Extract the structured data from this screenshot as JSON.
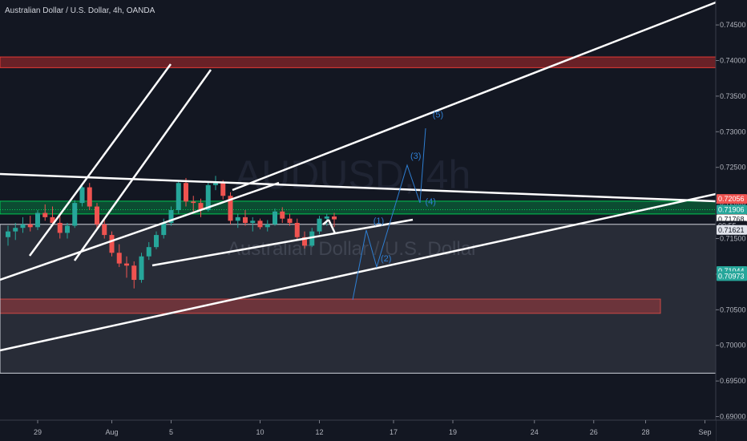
{
  "header": {
    "title": "Australian Dollar / U.S. Dollar, 4h, OANDA"
  },
  "watermark": {
    "symbol": "AUDUSD, 4h",
    "name": "Australian Dollar / U.S. Dollar"
  },
  "colors": {
    "background": "#131722",
    "up": "#26a69a",
    "down": "#ef5350",
    "green_zone": "#00b050",
    "red_zone": "#d32f2f",
    "wave": "#2f7fd3",
    "lines": "#ffffff"
  },
  "chart_data": {
    "type": "candlestick",
    "instrument": "AUDUSD",
    "timeframe": "4h",
    "source": "OANDA",
    "ylim": [
      0.6895,
      0.7485
    ],
    "y_ticks": [
      "0.74500",
      "0.74000",
      "0.73500",
      "0.73000",
      "0.72500",
      "0.72000",
      "0.71500",
      "0.71000",
      "0.70500",
      "0.70000",
      "0.69500",
      "0.69000"
    ],
    "y_tick_values": [
      0.745,
      0.74,
      0.735,
      0.73,
      0.725,
      0.72,
      0.715,
      0.71,
      0.705,
      0.7,
      0.695,
      0.69
    ],
    "x_ticks": [
      {
        "label": "29",
        "index": 4
      },
      {
        "label": "Aug",
        "index": 14
      },
      {
        "label": "5",
        "index": 22
      },
      {
        "label": "10",
        "index": 34
      },
      {
        "label": "12",
        "index": 42
      },
      {
        "label": "17",
        "index": 52
      },
      {
        "label": "19",
        "index": 60
      },
      {
        "label": "24",
        "index": 71
      },
      {
        "label": "26",
        "index": 79
      },
      {
        "label": "28",
        "index": 86
      },
      {
        "label": "Sep",
        "index": 94
      }
    ],
    "price_badges": [
      {
        "label": "0.72056",
        "value": 0.72056,
        "color": "#ef5350"
      },
      {
        "label": "0.71906",
        "value": 0.71906,
        "color": "#26a69a"
      },
      {
        "label": "0.71772",
        "value": 0.71772,
        "color": "#ef5350"
      },
      {
        "label": "0.71768",
        "value": 0.71768,
        "color": "#ffffff"
      },
      {
        "label": "09:55",
        "value": 0.7168,
        "color": "#131722"
      },
      {
        "label": "0.71621",
        "value": 0.71621,
        "color": "#e0e3eb"
      },
      {
        "label": "0.71044",
        "value": 0.71044,
        "color": "#26a69a"
      },
      {
        "label": "0.70973",
        "value": 0.70973,
        "color": "#26a69a"
      }
    ],
    "candles": [
      [
        0.7152,
        0.7168,
        0.714,
        0.716
      ],
      [
        0.716,
        0.7172,
        0.7148,
        0.7165
      ],
      [
        0.7165,
        0.718,
        0.7158,
        0.717
      ],
      [
        0.717,
        0.7182,
        0.716,
        0.7166
      ],
      [
        0.7166,
        0.719,
        0.7162,
        0.7186
      ],
      [
        0.7186,
        0.7198,
        0.7175,
        0.718
      ],
      [
        0.718,
        0.7195,
        0.7168,
        0.7172
      ],
      [
        0.7172,
        0.7182,
        0.715,
        0.7158
      ],
      [
        0.7158,
        0.7172,
        0.715,
        0.7168
      ],
      [
        0.7168,
        0.7204,
        0.7165,
        0.72
      ],
      [
        0.72,
        0.7228,
        0.7195,
        0.7222
      ],
      [
        0.7222,
        0.7228,
        0.719,
        0.7195
      ],
      [
        0.7195,
        0.72,
        0.7165,
        0.717
      ],
      [
        0.717,
        0.7176,
        0.715,
        0.7155
      ],
      [
        0.7155,
        0.716,
        0.7125,
        0.713
      ],
      [
        0.713,
        0.7142,
        0.711,
        0.7115
      ],
      [
        0.7115,
        0.7125,
        0.7095,
        0.7112
      ],
      [
        0.7112,
        0.7118,
        0.708,
        0.7092
      ],
      [
        0.7092,
        0.713,
        0.7088,
        0.7125
      ],
      [
        0.7125,
        0.7145,
        0.712,
        0.7138
      ],
      [
        0.7138,
        0.716,
        0.7135,
        0.7155
      ],
      [
        0.7155,
        0.7178,
        0.715,
        0.7172
      ],
      [
        0.7172,
        0.7195,
        0.7168,
        0.719
      ],
      [
        0.719,
        0.7232,
        0.7185,
        0.7228
      ],
      [
        0.7228,
        0.7235,
        0.7195,
        0.7202
      ],
      [
        0.7202,
        0.721,
        0.7188,
        0.72
      ],
      [
        0.72,
        0.7206,
        0.718,
        0.719
      ],
      [
        0.719,
        0.723,
        0.7188,
        0.7225
      ],
      [
        0.7225,
        0.7238,
        0.7218,
        0.7228
      ],
      [
        0.7228,
        0.7232,
        0.7205,
        0.721
      ],
      [
        0.721,
        0.7215,
        0.717,
        0.7175
      ],
      [
        0.7175,
        0.7185,
        0.7165,
        0.718
      ],
      [
        0.718,
        0.719,
        0.7168,
        0.7172
      ],
      [
        0.7172,
        0.718,
        0.716,
        0.7175
      ],
      [
        0.7175,
        0.7178,
        0.7163,
        0.7166
      ],
      [
        0.7166,
        0.7176,
        0.716,
        0.717
      ],
      [
        0.717,
        0.7192,
        0.7168,
        0.7188
      ],
      [
        0.7188,
        0.7194,
        0.7172,
        0.7178
      ],
      [
        0.7178,
        0.7185,
        0.7168,
        0.7172
      ],
      [
        0.7172,
        0.7178,
        0.7148,
        0.7152
      ],
      [
        0.7152,
        0.716,
        0.7136,
        0.714
      ],
      [
        0.714,
        0.7165,
        0.7138,
        0.716
      ],
      [
        0.716,
        0.7182,
        0.7156,
        0.7178
      ],
      [
        0.7178,
        0.7185,
        0.7168,
        0.7181
      ],
      [
        0.7181,
        0.7186,
        0.7166,
        0.7177
      ]
    ],
    "zones": [
      {
        "name": "upper-red-zone",
        "y1": 0.7405,
        "y2": 0.739,
        "x_end": "right"
      },
      {
        "name": "green-zone",
        "y1": 0.72025,
        "y2": 0.71845,
        "x_end": "right"
      },
      {
        "name": "lower-red-zone",
        "y1": 0.7065,
        "y2": 0.7045,
        "x_end": "bar:88"
      },
      {
        "name": "projection-box",
        "y1": 0.717,
        "y2": 0.6961,
        "x_end": "right"
      }
    ],
    "elliott_labels": [
      {
        "text": "(1)",
        "x": "bar:50",
        "y": 0.7171
      },
      {
        "text": "(2)",
        "x": "bar:51",
        "y": 0.7118
      },
      {
        "text": "(3)",
        "x": "bar:55",
        "y": 0.7262
      },
      {
        "text": "(4)",
        "x": "bar:57",
        "y": 0.7198
      },
      {
        "text": "(5)",
        "x": "bar:58",
        "y": 0.732
      }
    ]
  }
}
